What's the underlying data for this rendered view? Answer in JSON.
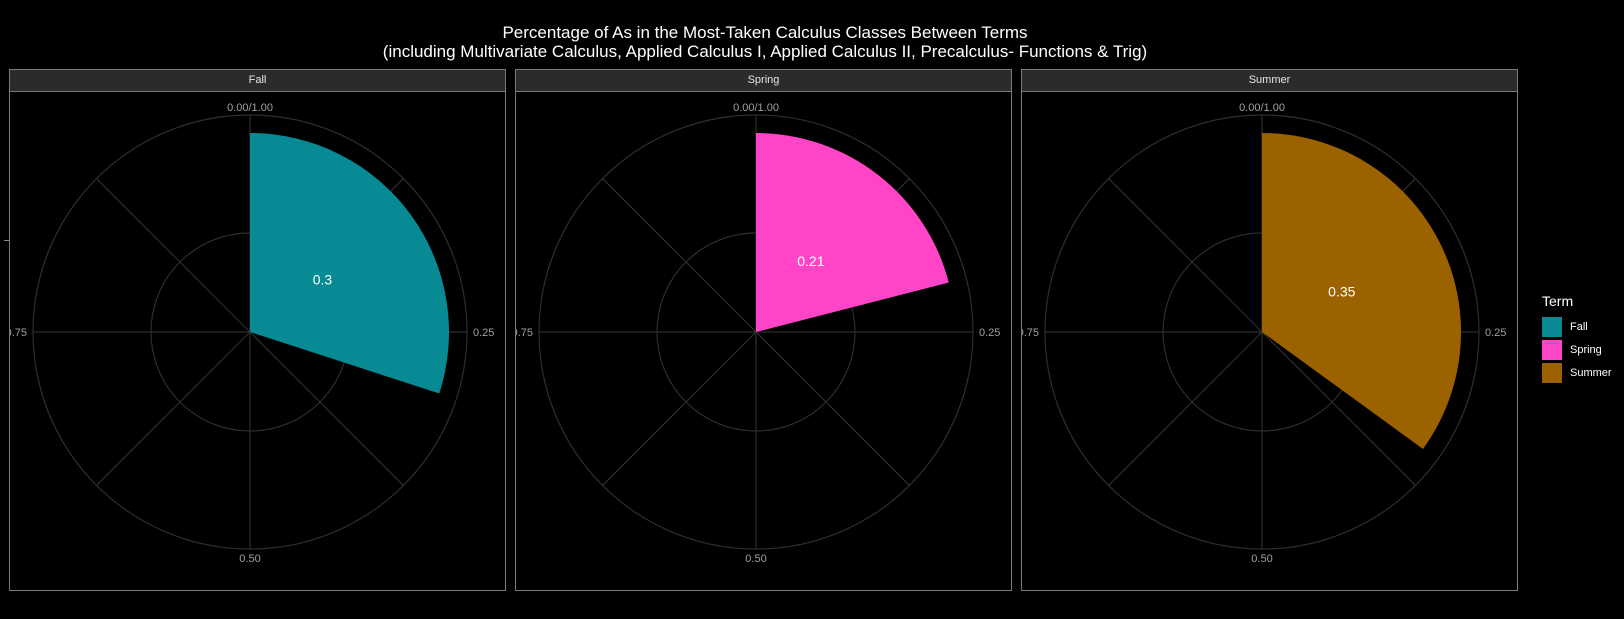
{
  "title": "Percentage of As in the Most-Taken Calculus Classes Between Terms",
  "subtitle": "(including Multivariate Calculus, Applied Calculus I, Applied Calculus II, Precalculus- Functions & Trig)",
  "chart_data": {
    "type": "pie",
    "coord": "polar",
    "theta_ticks": [
      "0.00/1.00",
      "0.25",
      "0.50",
      "0.75"
    ],
    "grid": true,
    "legend_position": "right",
    "legend_title": "Term",
    "facets": [
      {
        "label": "Fall",
        "value": 0.3,
        "value_label": "0.3",
        "color": "#088A94"
      },
      {
        "label": "Spring",
        "value": 0.21,
        "value_label": "0.21",
        "color": "#FF44C8"
      },
      {
        "label": "Summer",
        "value": 0.35,
        "value_label": "0.35",
        "color": "#9C6200"
      }
    ]
  }
}
